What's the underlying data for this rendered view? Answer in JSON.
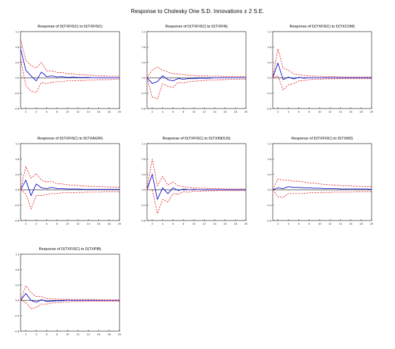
{
  "title": "Response to Cholesky One S.D. Innovations ± 2 S.E.",
  "colors": {
    "response": "#0000cc",
    "band": "#e00000",
    "zero": "#000000",
    "axis": "#000000"
  },
  "chart_data": [
    {
      "type": "line",
      "title": "Response of D(TXFISC) to D(TXFISC)",
      "x": [
        1,
        2,
        3,
        4,
        5,
        6,
        7,
        8,
        9,
        10,
        11,
        12,
        13,
        14,
        15,
        16,
        17,
        18,
        19,
        20
      ],
      "xticks": [
        2,
        4,
        6,
        8,
        10,
        12,
        14,
        16,
        18,
        20
      ],
      "ylim": [
        -0.8,
        1.2
      ],
      "yticks": [
        -0.8,
        -0.4,
        0.0,
        0.4,
        0.8,
        1.2
      ],
      "ytick_labels": [
        "-0.8",
        "-0.4",
        "0.0",
        "0.4",
        "0.8",
        "1.2"
      ],
      "series": [
        {
          "values": [
            0.75,
            0.2,
            0.05,
            -0.08,
            0.15,
            0.03,
            0.05,
            0.02,
            0.03,
            0.01,
            0.02,
            0.01,
            0.01,
            0.01,
            0.0,
            0.0,
            0.0,
            0.0,
            0.0,
            0.0
          ]
        },
        {
          "values": [
            1.0,
            0.45,
            0.32,
            0.25,
            0.4,
            0.18,
            0.18,
            0.14,
            0.14,
            0.1,
            0.1,
            0.08,
            0.08,
            0.07,
            0.06,
            0.05,
            0.05,
            0.04,
            0.04,
            0.04
          ]
        },
        {
          "values": [
            0.5,
            -0.2,
            -0.35,
            -0.38,
            -0.12,
            -0.15,
            -0.12,
            -0.1,
            -0.1,
            -0.08,
            -0.08,
            -0.07,
            -0.07,
            -0.06,
            -0.06,
            -0.05,
            -0.05,
            -0.05,
            -0.04,
            -0.04
          ]
        }
      ]
    },
    {
      "type": "line",
      "title": "Response of D(TXFISC) to D(TXFIN)",
      "x": [
        1,
        2,
        3,
        4,
        5,
        6,
        7,
        8,
        9,
        10,
        11,
        12,
        13,
        14,
        15,
        16,
        17,
        18,
        19,
        20
      ],
      "xticks": [
        2,
        4,
        6,
        8,
        10,
        12,
        14,
        16,
        18,
        20
      ],
      "ylim": [
        -0.8,
        1.2
      ],
      "yticks": [
        -0.8,
        -0.4,
        0.0,
        0.4,
        0.8,
        1.2
      ],
      "ytick_labels": [
        "-0.8",
        "-0.4",
        "0.0",
        "0.4",
        "0.8",
        "1.2"
      ],
      "series": [
        {
          "values": [
            0.0,
            -0.15,
            -0.1,
            0.05,
            -0.05,
            -0.08,
            -0.02,
            -0.04,
            -0.02,
            -0.02,
            -0.01,
            -0.01,
            -0.01,
            0.0,
            0.0,
            0.0,
            0.0,
            0.0,
            0.0,
            0.0
          ]
        },
        {
          "values": [
            0.0,
            0.2,
            0.28,
            0.2,
            0.15,
            0.1,
            0.1,
            0.08,
            0.07,
            0.06,
            0.05,
            0.05,
            0.04,
            0.04,
            0.04,
            0.03,
            0.03,
            0.03,
            0.03,
            0.03
          ]
        },
        {
          "values": [
            0.0,
            -0.5,
            -0.55,
            -0.15,
            -0.22,
            -0.25,
            -0.12,
            -0.14,
            -0.1,
            -0.09,
            -0.08,
            -0.07,
            -0.06,
            -0.06,
            -0.05,
            -0.05,
            -0.04,
            -0.04,
            -0.04,
            -0.04
          ]
        }
      ]
    },
    {
      "type": "line",
      "title": "Response of D(TXFISC) to D(TXCOM)",
      "x": [
        1,
        2,
        3,
        4,
        5,
        6,
        7,
        8,
        9,
        10,
        11,
        12,
        13,
        14,
        15,
        16,
        17,
        18,
        19,
        20
      ],
      "xticks": [
        2,
        4,
        6,
        8,
        10,
        12,
        14,
        16,
        18,
        20
      ],
      "ylim": [
        -0.8,
        1.2
      ],
      "yticks": [
        -0.8,
        -0.4,
        0.0,
        0.4,
        0.8,
        1.2
      ],
      "ytick_labels": [
        "-0.8",
        "-0.4",
        "0.0",
        "0.4",
        "0.8",
        "1.2"
      ],
      "series": [
        {
          "values": [
            0.0,
            0.38,
            -0.05,
            0.02,
            -0.03,
            0.01,
            -0.01,
            0.0,
            0.0,
            0.0,
            0.0,
            0.0,
            0.0,
            0.0,
            0.0,
            0.0,
            0.0,
            0.0,
            0.0,
            0.0
          ]
        },
        {
          "values": [
            0.0,
            0.75,
            0.25,
            0.2,
            0.1,
            0.08,
            0.06,
            0.05,
            0.04,
            0.04,
            0.03,
            0.03,
            0.03,
            0.02,
            0.02,
            0.02,
            0.02,
            0.02,
            0.02,
            0.02
          ]
        },
        {
          "values": [
            0.0,
            0.05,
            -0.32,
            -0.18,
            -0.15,
            -0.08,
            -0.07,
            -0.05,
            -0.04,
            -0.04,
            -0.03,
            -0.03,
            -0.03,
            -0.02,
            -0.02,
            -0.02,
            -0.02,
            -0.02,
            -0.02,
            -0.02
          ]
        }
      ]
    },
    {
      "type": "line",
      "title": "Response of D(TXFISC) to D(TXAGRI)",
      "x": [
        1,
        2,
        3,
        4,
        5,
        6,
        7,
        8,
        9,
        10,
        11,
        12,
        13,
        14,
        15,
        16,
        17,
        18,
        19,
        20
      ],
      "xticks": [
        2,
        4,
        6,
        8,
        10,
        12,
        14,
        16,
        18,
        20
      ],
      "ylim": [
        -0.8,
        1.2
      ],
      "yticks": [
        -0.8,
        -0.4,
        0.0,
        0.4,
        0.8,
        1.2
      ],
      "ytick_labels": [
        "-0.8",
        "-0.4",
        "0.0",
        "0.4",
        "0.8",
        "1.2"
      ],
      "series": [
        {
          "values": [
            0.0,
            0.25,
            -0.15,
            0.15,
            0.05,
            0.03,
            0.06,
            0.03,
            0.03,
            0.02,
            0.02,
            0.02,
            0.01,
            0.01,
            0.01,
            0.01,
            0.01,
            0.01,
            0.01,
            0.01
          ]
        },
        {
          "values": [
            0.0,
            0.6,
            0.3,
            0.42,
            0.25,
            0.2,
            0.22,
            0.16,
            0.15,
            0.13,
            0.12,
            0.11,
            0.1,
            0.09,
            0.09,
            0.08,
            0.08,
            0.07,
            0.07,
            0.07
          ]
        },
        {
          "values": [
            0.0,
            -0.1,
            -0.5,
            -0.15,
            -0.15,
            -0.12,
            -0.1,
            -0.1,
            -0.08,
            -0.08,
            -0.08,
            -0.07,
            -0.07,
            -0.06,
            -0.06,
            -0.06,
            -0.05,
            -0.05,
            -0.05,
            -0.05
          ]
        }
      ]
    },
    {
      "type": "line",
      "title": "Response of D(TXFISC) to D(TXINDUS)",
      "x": [
        1,
        2,
        3,
        4,
        5,
        6,
        7,
        8,
        9,
        10,
        11,
        12,
        13,
        14,
        15,
        16,
        17,
        18,
        19,
        20
      ],
      "xticks": [
        2,
        4,
        6,
        8,
        10,
        12,
        14,
        16,
        18,
        20
      ],
      "ylim": [
        -0.8,
        1.2
      ],
      "yticks": [
        -0.8,
        -0.4,
        0.0,
        0.4,
        0.8,
        1.2
      ],
      "ytick_labels": [
        "-0.8",
        "-0.4",
        "0.0",
        "0.4",
        "0.8",
        "1.2"
      ],
      "series": [
        {
          "values": [
            0.0,
            0.4,
            -0.25,
            0.05,
            -0.1,
            0.05,
            -0.02,
            0.02,
            0.0,
            0.01,
            0.0,
            0.0,
            0.0,
            0.0,
            0.0,
            0.0,
            0.0,
            0.0,
            0.0,
            0.0
          ]
        },
        {
          "values": [
            0.0,
            0.8,
            0.1,
            0.35,
            0.12,
            0.2,
            0.1,
            0.08,
            0.06,
            0.05,
            0.04,
            0.04,
            0.03,
            0.03,
            0.03,
            0.02,
            0.02,
            0.02,
            0.02,
            0.02
          ]
        },
        {
          "values": [
            0.0,
            0.0,
            -0.62,
            -0.25,
            -0.32,
            -0.1,
            -0.12,
            -0.05,
            -0.06,
            -0.04,
            -0.04,
            -0.03,
            -0.03,
            -0.03,
            -0.02,
            -0.02,
            -0.02,
            -0.02,
            -0.02,
            -0.02
          ]
        }
      ]
    },
    {
      "type": "line",
      "title": "Response of D(TXFISC) to D(TXM2)",
      "x": [
        1,
        2,
        3,
        4,
        5,
        6,
        7,
        8,
        9,
        10,
        11,
        12,
        13,
        14,
        15,
        16,
        17,
        18,
        19,
        20
      ],
      "xticks": [
        2,
        4,
        6,
        8,
        10,
        12,
        14,
        16,
        18,
        20
      ],
      "ylim": [
        -0.8,
        1.2
      ],
      "yticks": [
        -0.8,
        -0.4,
        0.0,
        0.4,
        0.8,
        1.2
      ],
      "ytick_labels": [
        "-0.8",
        "-0.4",
        "0.0",
        "0.4",
        "0.8",
        "1.2"
      ],
      "series": [
        {
          "values": [
            0.0,
            0.05,
            0.03,
            0.08,
            0.06,
            0.06,
            0.05,
            0.05,
            0.04,
            0.04,
            0.03,
            0.03,
            0.03,
            0.02,
            0.02,
            0.02,
            0.02,
            0.02,
            0.02,
            0.01
          ]
        },
        {
          "values": [
            0.0,
            0.28,
            0.25,
            0.25,
            0.22,
            0.22,
            0.2,
            0.18,
            0.17,
            0.15,
            0.14,
            0.13,
            0.12,
            0.11,
            0.1,
            0.1,
            0.09,
            0.09,
            0.08,
            0.08
          ]
        },
        {
          "values": [
            0.0,
            -0.18,
            -0.2,
            -0.1,
            -0.1,
            -0.1,
            -0.1,
            -0.08,
            -0.08,
            -0.07,
            -0.07,
            -0.07,
            -0.06,
            -0.06,
            -0.06,
            -0.06,
            -0.05,
            -0.05,
            -0.05,
            -0.05
          ]
        }
      ]
    },
    {
      "type": "line",
      "title": "Response of D(TXFISC) to D(TXPIB)",
      "x": [
        1,
        2,
        3,
        4,
        5,
        6,
        7,
        8,
        9,
        10,
        11,
        12,
        13,
        14,
        15,
        16,
        17,
        18,
        19,
        20
      ],
      "xticks": [
        2,
        4,
        6,
        8,
        10,
        12,
        14,
        16,
        18,
        20
      ],
      "ylim": [
        -0.8,
        1.2
      ],
      "yticks": [
        -0.8,
        -0.4,
        0.0,
        0.4,
        0.8,
        1.2
      ],
      "ytick_labels": [
        "-0.8",
        "-0.4",
        "0.0",
        "0.4",
        "0.8",
        "1.2"
      ],
      "series": [
        {
          "values": [
            0.0,
            0.18,
            0.0,
            -0.05,
            0.02,
            -0.03,
            -0.02,
            -0.01,
            -0.01,
            0.0,
            0.0,
            0.0,
            0.0,
            0.0,
            0.0,
            0.0,
            0.0,
            0.0,
            0.0,
            0.0
          ]
        },
        {
          "values": [
            0.0,
            0.38,
            0.2,
            0.1,
            0.1,
            0.05,
            0.04,
            0.04,
            0.03,
            0.03,
            0.02,
            0.02,
            0.02,
            0.02,
            0.02,
            0.01,
            0.01,
            0.01,
            0.01,
            0.01
          ]
        },
        {
          "values": [
            0.0,
            -0.05,
            -0.22,
            -0.18,
            -0.1,
            -0.1,
            -0.07,
            -0.06,
            -0.05,
            -0.04,
            -0.03,
            -0.03,
            -0.03,
            -0.02,
            -0.02,
            -0.02,
            -0.02,
            -0.02,
            -0.02,
            -0.02
          ]
        }
      ]
    }
  ]
}
